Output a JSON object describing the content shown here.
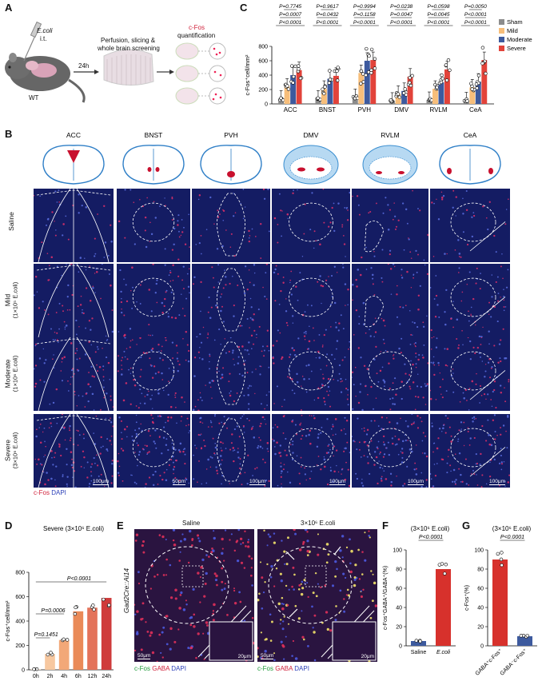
{
  "panelA": {
    "label": "A",
    "ecoli": "E.coli",
    "it": "i.t.",
    "time": "24h",
    "step1": "Perfusion, slicing &",
    "step2": "whole brain screening",
    "cfos": "c-Fos",
    "quant": "quantification",
    "wt": "WT"
  },
  "panelC": {
    "label": "C",
    "ylabel": "c-Fos⁺cell/mm²",
    "legend": [
      "Sham",
      "Mild",
      "Moderate",
      "Severe"
    ],
    "colors": [
      "#8c8c8c",
      "#f7be7a",
      "#3d5a9e",
      "#e2433a"
    ],
    "pvalues": {
      "ACC": [
        "P=0.7745",
        "P=0.0007",
        "P<0.0001"
      ],
      "BNST": [
        "P=0.9617",
        "P=0.0432",
        "P<0.0001"
      ],
      "PVH": [
        "P=0.9994",
        "P=0.1158",
        "P<0.0001"
      ],
      "DMV": [
        "P=0.0238",
        "P=0.0047",
        "P<0.0001"
      ],
      "RVLM": [
        "P=0.0598",
        "P=0.0045",
        "P<0.0001"
      ],
      "CeA": [
        "P=0.0050",
        "P<0.0001",
        "P<0.0001"
      ]
    }
  },
  "chart_data": [
    {
      "type": "bar",
      "panel": "C",
      "categories": [
        "ACC",
        "BNST",
        "PVH",
        "DMV",
        "RVLM",
        "CeA"
      ],
      "ylabel": "c-Fos⁺cell/mm²",
      "ylim": [
        0,
        800
      ],
      "yticks": [
        0,
        200,
        400,
        600,
        800
      ],
      "series": [
        {
          "name": "Sham",
          "values": [
            75,
            75,
            95,
            45,
            55,
            50
          ]
        },
        {
          "name": "Mild",
          "values": [
            240,
            210,
            430,
            140,
            210,
            230
          ]
        },
        {
          "name": "Moderate",
          "values": [
            400,
            350,
            600,
            180,
            300,
            310
          ]
        },
        {
          "name": "Severe",
          "values": [
            470,
            390,
            610,
            380,
            480,
            610
          ]
        }
      ]
    },
    {
      "type": "bar",
      "panel": "D",
      "categories": [
        "0h",
        "2h",
        "4h",
        "6h",
        "12h",
        "24h"
      ],
      "values": [
        5,
        130,
        245,
        480,
        510,
        590
      ],
      "ylabel": "c-Fos⁺cell/mm²",
      "ylim": [
        0,
        800
      ],
      "yticks": [
        0,
        200,
        400,
        600,
        800
      ],
      "colors": [
        "#fbe4cf",
        "#f7c8a0",
        "#f2a878",
        "#ea8a58",
        "#e3735a",
        "#cf3b3b"
      ]
    },
    {
      "type": "bar",
      "panel": "F",
      "categories": [
        "Saline",
        "E.coli"
      ],
      "values": [
        5,
        80
      ],
      "ylabel": "c-Fos⁺GABA⁺/GABA⁺(%)",
      "ylim": [
        0,
        100
      ],
      "yticks": [
        0,
        20,
        40,
        60,
        80,
        100
      ],
      "colors": [
        "#3d5a9e",
        "#d7312c"
      ]
    },
    {
      "type": "bar",
      "panel": "G",
      "categories": [
        "GABA⁺c-Fos⁺",
        "GABA⁻c-Fos⁺"
      ],
      "values": [
        90,
        10
      ],
      "ylabel": "c-Fos⁺(%)",
      "ylim": [
        0,
        100
      ],
      "yticks": [
        0,
        20,
        40,
        60,
        80,
        100
      ],
      "colors": [
        "#d7312c",
        "#3d5a9e"
      ]
    }
  ],
  "panelB": {
    "label": "B",
    "regions": [
      "ACC",
      "BNST",
      "PVH",
      "DMV",
      "RVLM",
      "CeA"
    ],
    "rows": [
      {
        "line1": "Saline",
        "line2": ""
      },
      {
        "line1": "Mild",
        "line2": "(1×10⁵ E.coli)"
      },
      {
        "line1": "Moderate",
        "line2": "(1×10⁶ E.coli)"
      },
      {
        "line1": "Severe",
        "line2": "(3×10⁶ E.coli)"
      }
    ],
    "scalebars": [
      "100μm",
      "50μm",
      "100μm",
      "100μm",
      "100μm",
      "100μm"
    ],
    "stain_cfos": "c-Fos",
    "stain_dapi": "DAPI"
  },
  "panelD": {
    "label": "D",
    "title": "Severe (3×10⁶ E.coli)",
    "p1": "P=0.1451",
    "p2": "P=0.0006",
    "p3": "P<0.0001"
  },
  "panelE": {
    "label": "E",
    "left_title": "Saline",
    "right_title": "3×10⁶ E.coli",
    "side_label": "Gad2Cre::Ai14",
    "scale_big": "50μm",
    "scale_small": "20μm",
    "stain": [
      "c-Fos",
      "GABA",
      "DAPI"
    ]
  },
  "panelF": {
    "label": "F",
    "title": "(3×10⁶ E.coli)",
    "pval": "P<0.0001"
  },
  "panelG": {
    "label": "G",
    "title": "(3×10⁶ E.coli)",
    "pval": "P<0.0001"
  }
}
